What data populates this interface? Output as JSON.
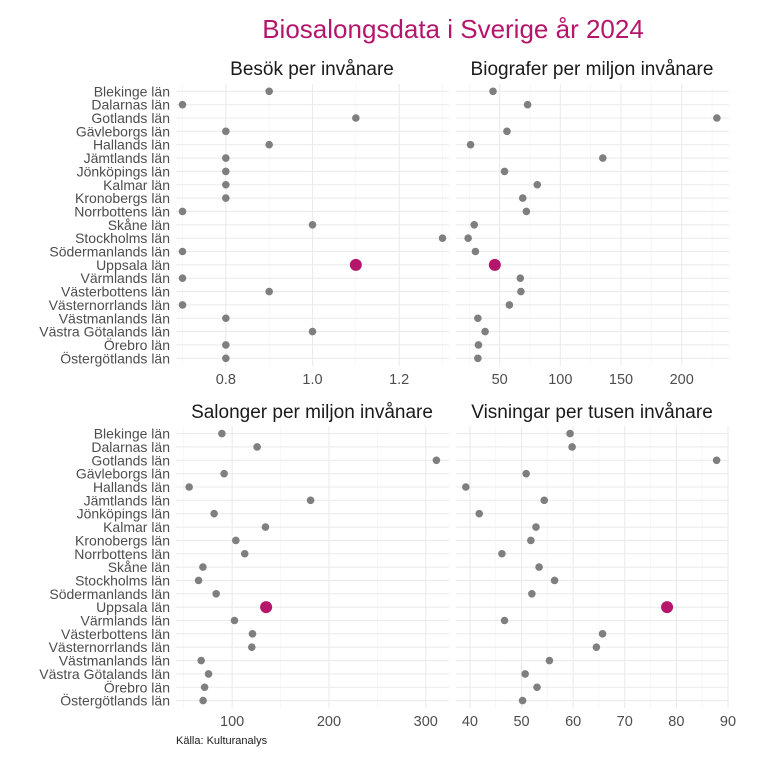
{
  "title": "Biosalongsdata i Sverige år 2024",
  "caption": "Källa: Kulturanalys",
  "highlight_color": "#b5166b",
  "point_color": "#7f7f7f",
  "highlight_category": "Uppsala län",
  "chart_data": {
    "type": "scatter",
    "title": "Biosalongsdata i Sverige år 2024",
    "categories": [
      "Blekinge län",
      "Dalarnas län",
      "Gotlands län",
      "Gävleborgs län",
      "Hallands län",
      "Jämtlands län",
      "Jönköpings län",
      "Kalmar län",
      "Kronobergs län",
      "Norrbottens län",
      "Skåne län",
      "Stockholms län",
      "Södermanlands län",
      "Uppsala län",
      "Värmlands län",
      "Västerbottens län",
      "Västernorrlands län",
      "Västmanlands län",
      "Västra Götalands län",
      "Örebro län",
      "Östergötlands län"
    ],
    "panels": [
      {
        "title": "Besök per invånare",
        "xlim": [
          0.685,
          1.315
        ],
        "major_ticks": [
          0.8,
          1.0,
          1.2
        ],
        "tick_labels": [
          "0.8",
          "1.0",
          "1.2"
        ],
        "minor_ticks": [
          0.7,
          0.9,
          1.1,
          1.3
        ],
        "values": [
          0.9,
          0.7,
          1.1,
          0.8,
          0.9,
          0.8,
          0.8,
          0.8,
          0.8,
          0.7,
          1.0,
          1.3,
          0.7,
          1.1,
          0.7,
          0.9,
          0.7,
          0.8,
          1.0,
          0.8,
          0.8
        ]
      },
      {
        "title": "Biografer per miljon invånare",
        "xlim": [
          14,
          239
        ],
        "major_ticks": [
          50,
          100,
          150,
          200
        ],
        "tick_labels": [
          "50",
          "100",
          "150",
          "200"
        ],
        "minor_ticks": [
          25,
          75,
          125,
          175,
          225
        ],
        "values": [
          44.5,
          73,
          229,
          56,
          26,
          135,
          54,
          81,
          69,
          72,
          29,
          24,
          30,
          46,
          67,
          67.5,
          58,
          32,
          38,
          32.5,
          32
        ]
      },
      {
        "title": "Salonger per miljon invånare",
        "xlim": [
          42,
          324
        ],
        "major_ticks": [
          100,
          200,
          300
        ],
        "tick_labels": [
          "100",
          "200",
          "300"
        ],
        "minor_ticks": [
          50,
          150,
          250
        ],
        "values": [
          89.4,
          125.8,
          311,
          91.7,
          55.6,
          181,
          81.4,
          134.4,
          103.8,
          113,
          69.8,
          65.3,
          83.5,
          135.1,
          102.4,
          121,
          120.3,
          68,
          75.6,
          71.5,
          70
        ]
      },
      {
        "title": "Visningar per tusen invånare",
        "xlim": [
          37.3,
          90.2
        ],
        "major_ticks": [
          40,
          50,
          60,
          70,
          80,
          90
        ],
        "tick_labels": [
          "40",
          "50",
          "60",
          "70",
          "80",
          "90"
        ],
        "minor_ticks": [
          45,
          55,
          65,
          75,
          85
        ],
        "values": [
          59.4,
          59.8,
          87.8,
          50.9,
          39.2,
          54.4,
          41.8,
          52.8,
          51.8,
          46.2,
          53.4,
          56.4,
          52,
          78.2,
          46.7,
          65.7,
          64.5,
          55.4,
          50.7,
          53,
          50.2
        ]
      }
    ]
  }
}
